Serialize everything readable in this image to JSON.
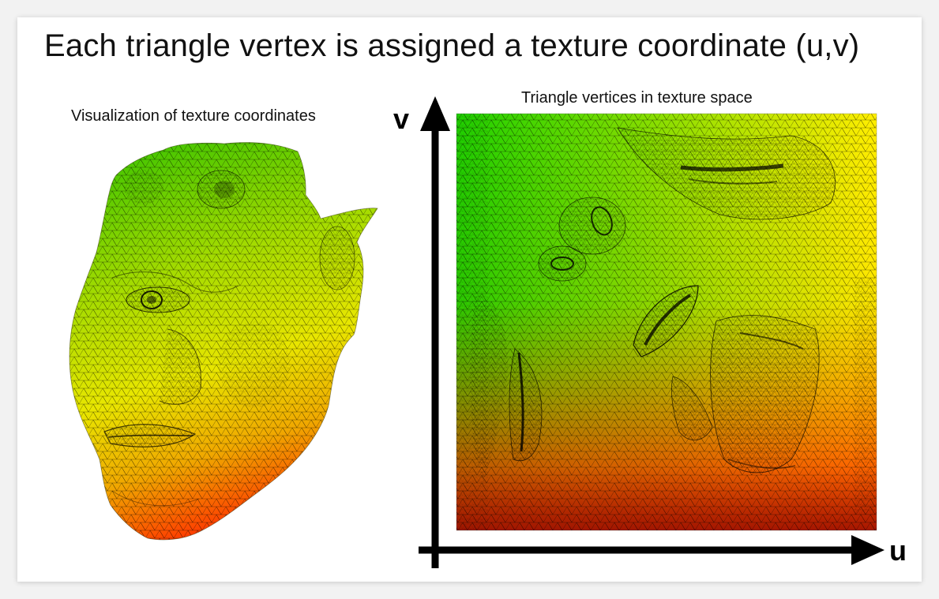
{
  "slide": {
    "title": "Each triangle vertex is assigned a texture coordinate (u,v)",
    "left_caption": "Visualization of texture coordinates",
    "right_caption": "Triangle vertices in texture space",
    "axis_u_label": "u",
    "axis_v_label": "v"
  },
  "colors": {
    "green": "#22d400",
    "yellow": "#f0f000",
    "red": "#ff2a00",
    "mesh_line": "#000000"
  }
}
